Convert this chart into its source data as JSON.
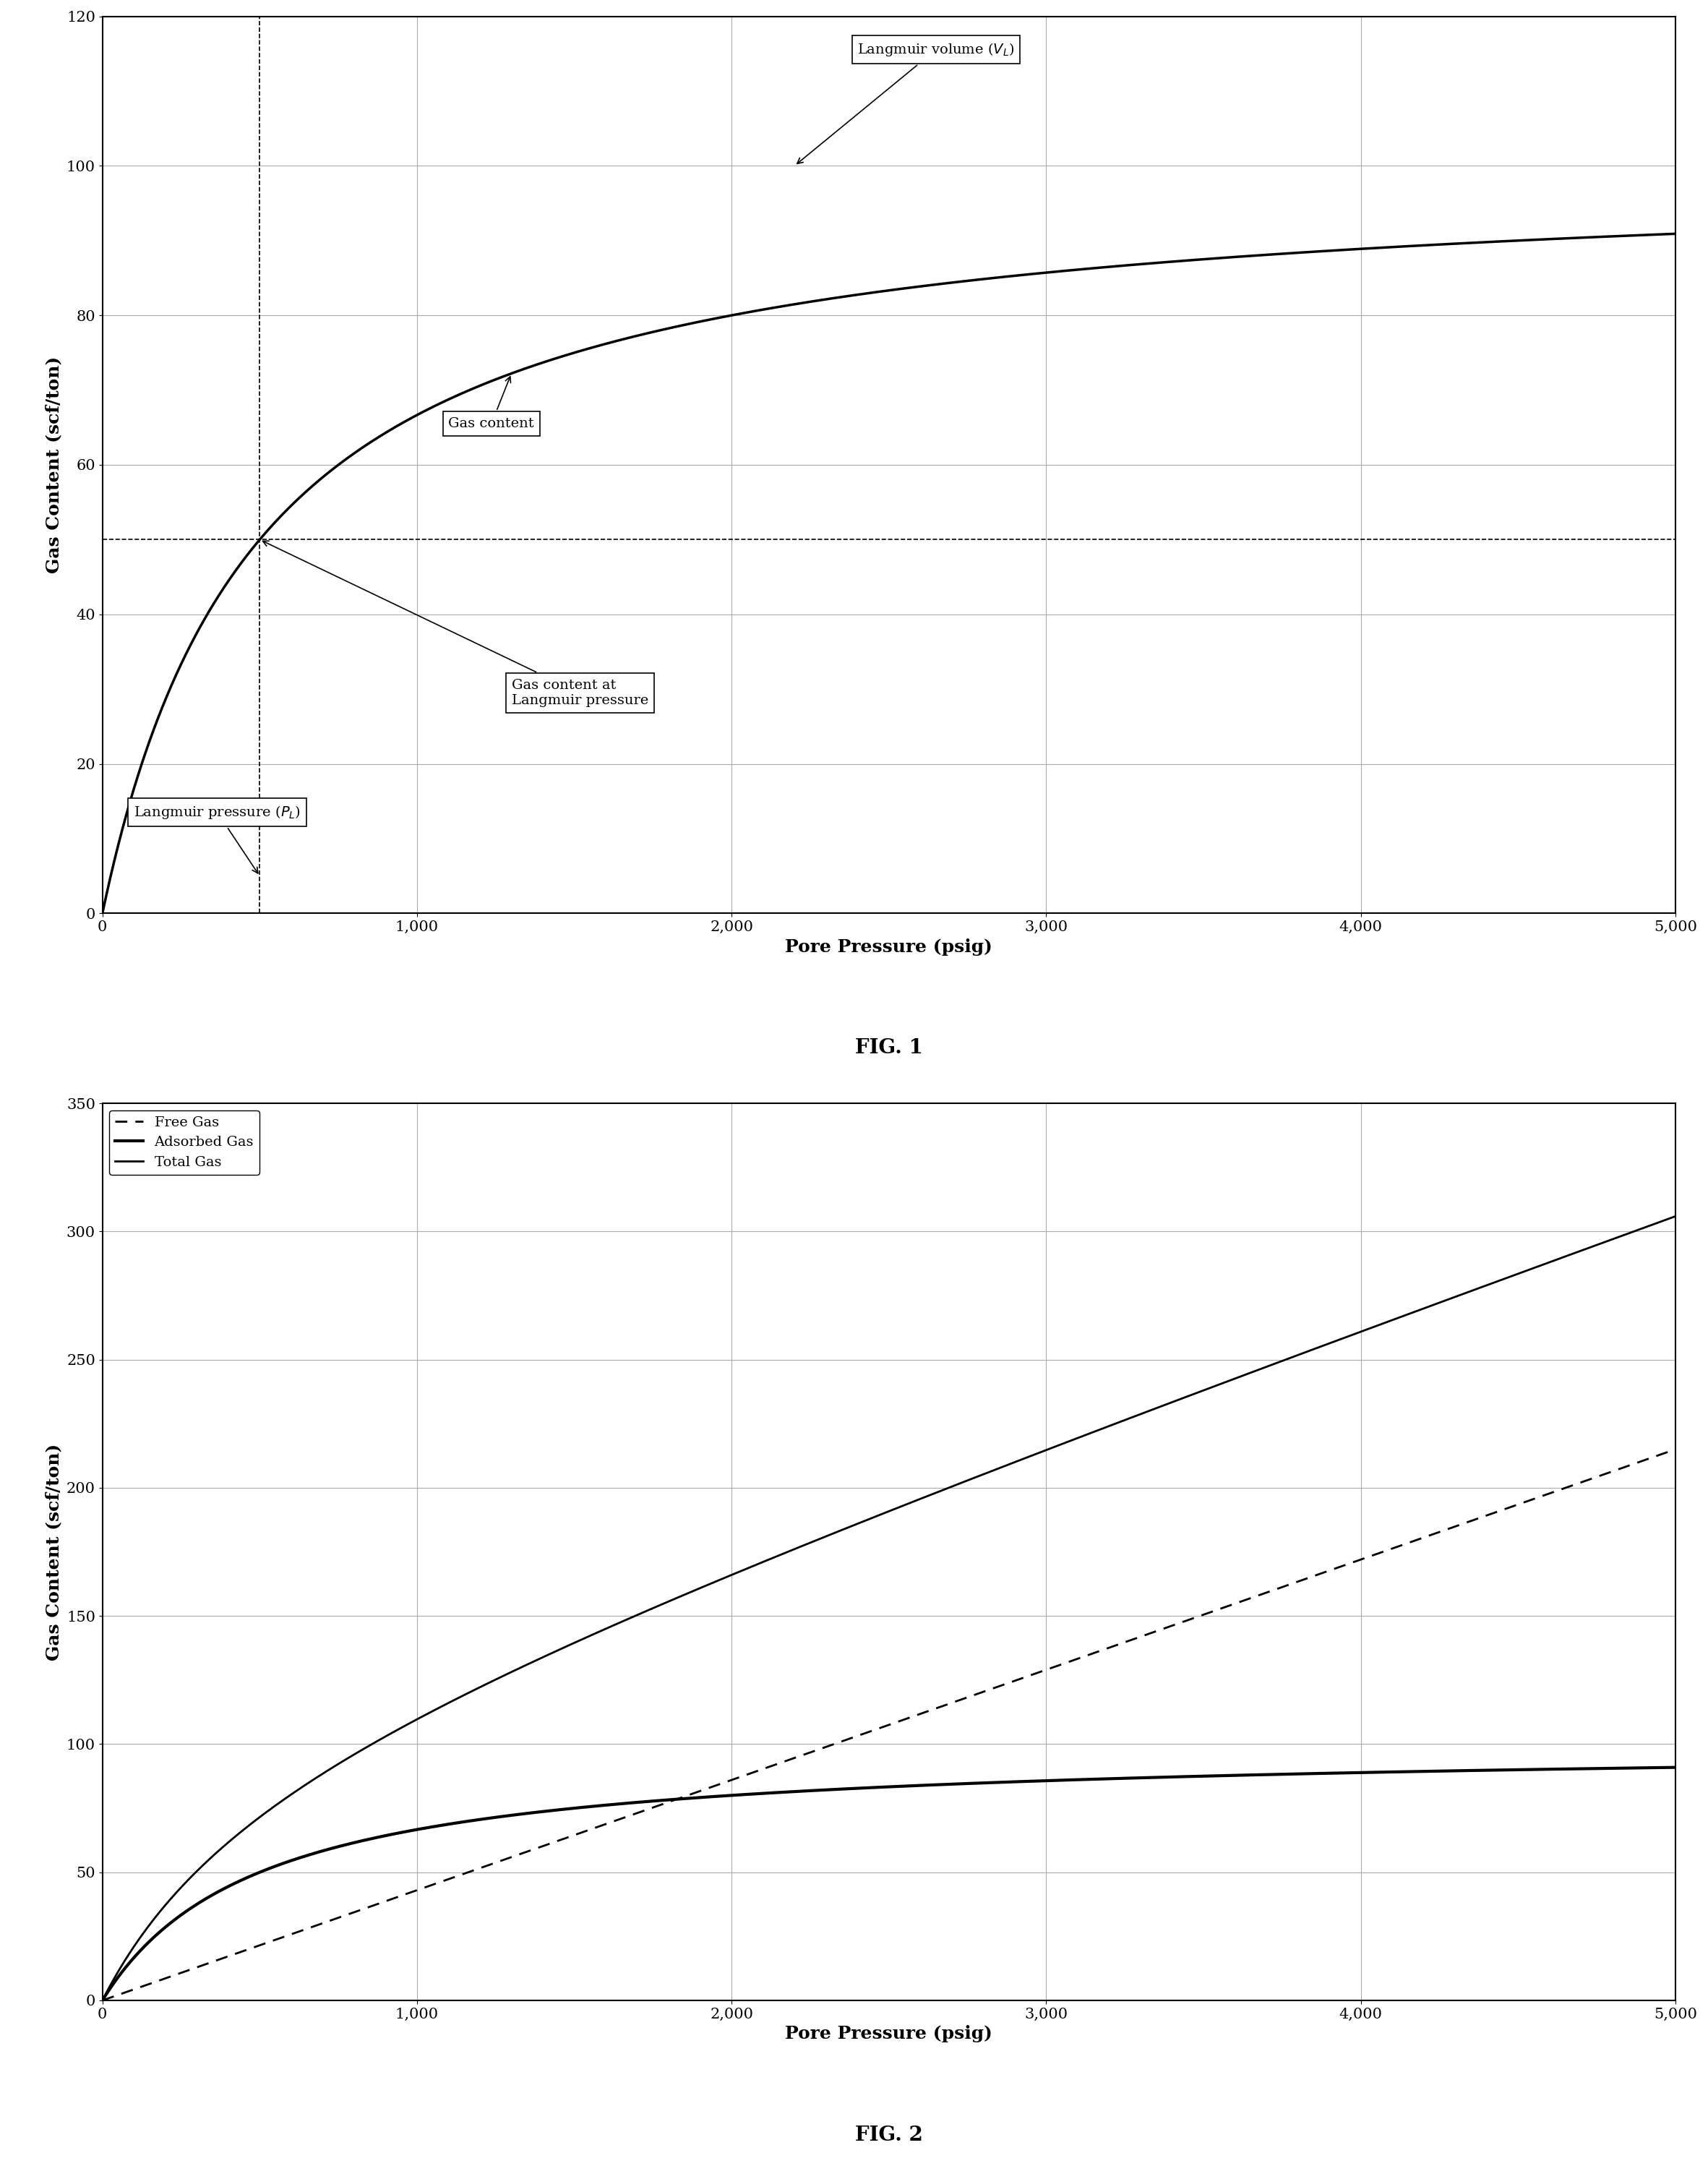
{
  "fig1": {
    "title": "FIG. 1",
    "xlabel": "Pore Pressure (psig)",
    "ylabel": "Gas Content (scf/ton)",
    "xlim": [
      0,
      5000
    ],
    "ylim": [
      0,
      120
    ],
    "xticks": [
      0,
      1000,
      2000,
      3000,
      4000,
      5000
    ],
    "yticks": [
      0,
      20,
      40,
      60,
      80,
      100,
      120
    ],
    "VL": 100,
    "PL": 500,
    "langmuir_volume_label": "Langmuir volume ($V_L$)",
    "gas_content_label": "Gas content",
    "gas_content_at_PL_label": "Gas content at\nLangmuir pressure",
    "langmuir_pressure_label": "Langmuir pressure ($P_L$)"
  },
  "fig2": {
    "title": "FIG. 2",
    "xlabel": "Pore Pressure (psig)",
    "ylabel": "Gas Content (scf/ton)",
    "xlim": [
      0,
      5000
    ],
    "ylim": [
      0,
      350
    ],
    "xticks": [
      0,
      1000,
      2000,
      3000,
      4000,
      5000
    ],
    "yticks": [
      0,
      50,
      100,
      150,
      200,
      250,
      300,
      350
    ],
    "VL": 100,
    "PL": 500,
    "free_gas_slope": 0.043,
    "legend_labels": [
      "Free Gas",
      "Adsorbed Gas",
      "Total Gas"
    ]
  },
  "background_color": "#ffffff",
  "line_color": "#000000",
  "grid_color": "#aaaaaa",
  "annotation_box_color": "#ffffff",
  "annotation_box_edge": "#000000"
}
